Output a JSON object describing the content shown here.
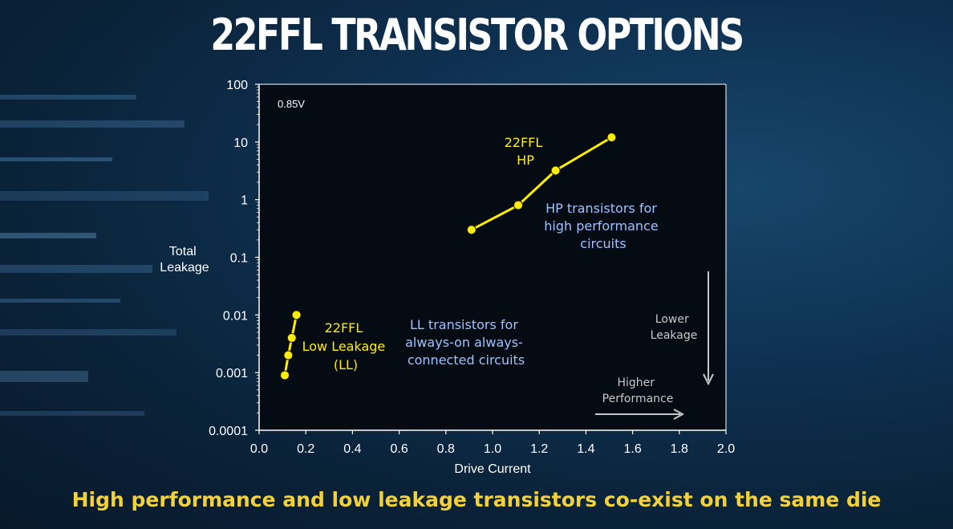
{
  "title": "22FFL TRANSISTOR OPTIONS",
  "subtitle": "High performance and low leakage transistors co-exist on the same die",
  "colors": {
    "series": "#ffee00",
    "annotation_blue": "#9ec3ff",
    "annotation_gray": "#c8c8c8",
    "subtitle": "#f2d13a"
  },
  "chart_data": {
    "type": "line",
    "xlabel": "Drive Current",
    "ylabel": [
      "Total",
      "Leakage"
    ],
    "xlim": [
      0.0,
      2.0
    ],
    "ylim": [
      0.0001,
      100
    ],
    "yscale": "log",
    "grid": false,
    "x_ticks": [
      "0.0",
      "0.2",
      "0.4",
      "0.6",
      "0.8",
      "1.0",
      "1.2",
      "1.4",
      "1.6",
      "1.8",
      "2.0"
    ],
    "y_ticks": [
      "100",
      "10",
      "1",
      "0.1",
      "0.01",
      "0.001",
      "0.0001"
    ],
    "corner_label": "0.85V",
    "series": [
      {
        "name_lines": [
          "22FFL",
          "Low Leakage",
          "(LL)"
        ],
        "points": [
          [
            0.11,
            0.0009
          ],
          [
            0.125,
            0.002
          ],
          [
            0.14,
            0.004
          ],
          [
            0.16,
            0.01
          ]
        ]
      },
      {
        "name_lines": [
          "22FFL",
          "HP"
        ],
        "points": [
          [
            0.91,
            0.3
          ],
          [
            1.11,
            0.8
          ],
          [
            1.27,
            3.2
          ],
          [
            1.51,
            12
          ]
        ]
      }
    ],
    "annotations": {
      "hp": [
        "HP transistors for",
        "high performance",
        "circuits"
      ],
      "ll": [
        "LL transistors for",
        "always-on always-",
        "connected circuits"
      ],
      "lower": [
        "Lower",
        "Leakage"
      ],
      "higher": [
        "Higher",
        "Performance"
      ]
    }
  }
}
